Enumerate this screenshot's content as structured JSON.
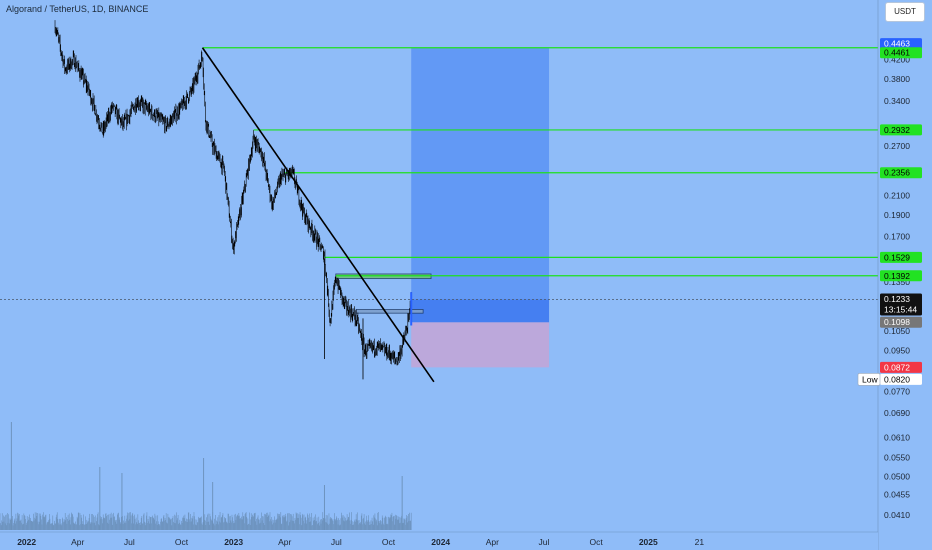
{
  "header": {
    "symbol_title": "Algorand / TetherUS, 1D, BINANCE",
    "currency": "USDT"
  },
  "colors": {
    "background": "#8fbcf8",
    "level_line": "#1ee01e",
    "target_zone": "#5a93f5",
    "stop_zone": "#c4a4d6",
    "candles": "#000000",
    "volume": "#6a8fb8",
    "current_price_tag": "#111111",
    "entry_tag": "#777777",
    "stop_tag": "#f23645",
    "target_tag": "#2962ff"
  },
  "chart_data": {
    "type": "candlestick",
    "symbol": "ALGOUSDT",
    "exchange": "BINANCE",
    "interval": "1D",
    "y_scale": "log",
    "y_range": [
      0.038,
      0.53
    ],
    "x_range": [
      "2021-11-15",
      "2026-02-10"
    ],
    "x_ticks": [
      {
        "date": "2022-01-01",
        "label": "2022",
        "bold": true
      },
      {
        "date": "2022-04-01",
        "label": "Apr",
        "bold": false
      },
      {
        "date": "2022-07-01",
        "label": "Jul",
        "bold": false
      },
      {
        "date": "2022-10-01",
        "label": "Oct",
        "bold": false
      },
      {
        "date": "2023-01-01",
        "label": "2023",
        "bold": true
      },
      {
        "date": "2023-04-01",
        "label": "Apr",
        "bold": false
      },
      {
        "date": "2023-07-01",
        "label": "Jul",
        "bold": false
      },
      {
        "date": "2023-10-01",
        "label": "Oct",
        "bold": false
      },
      {
        "date": "2024-01-01",
        "label": "2024",
        "bold": true
      },
      {
        "date": "2024-04-01",
        "label": "Apr",
        "bold": false
      },
      {
        "date": "2024-07-01",
        "label": "Jul",
        "bold": false
      },
      {
        "date": "2024-10-01",
        "label": "Oct",
        "bold": false
      },
      {
        "date": "2025-01-01",
        "label": "2025",
        "bold": true
      },
      {
        "date": "2025-04-01",
        "label": "21",
        "bold": false
      }
    ],
    "y_ticks": [
      0.42,
      0.38,
      0.34,
      0.27,
      0.21,
      0.19,
      0.17,
      0.135,
      0.105,
      0.095,
      0.077,
      0.069,
      0.061,
      0.055,
      0.05,
      0.0455,
      0.041
    ],
    "y_tick_labels": [
      "0.4200",
      "0.3800",
      "0.3400",
      "0.2700",
      "0.2100",
      "0.1900",
      "0.1700",
      "0.1350",
      "0.1050",
      "0.0950",
      "0.0770",
      "0.0690",
      "0.0610",
      "0.0550",
      "0.0500",
      "0.0455",
      "0.0410"
    ],
    "price_path": [
      {
        "date": "2022-02-20",
        "price": 0.5
      },
      {
        "date": "2022-03-10",
        "price": 0.4
      },
      {
        "date": "2022-03-25",
        "price": 0.42
      },
      {
        "date": "2022-04-20",
        "price": 0.36
      },
      {
        "date": "2022-05-15",
        "price": 0.29
      },
      {
        "date": "2022-06-01",
        "price": 0.33
      },
      {
        "date": "2022-06-20",
        "price": 0.3
      },
      {
        "date": "2022-07-15",
        "price": 0.34
      },
      {
        "date": "2022-08-10",
        "price": 0.32
      },
      {
        "date": "2022-09-05",
        "price": 0.3
      },
      {
        "date": "2022-10-01",
        "price": 0.33
      },
      {
        "date": "2022-10-20",
        "price": 0.36
      },
      {
        "date": "2022-11-07",
        "price": 0.43
      },
      {
        "date": "2022-11-12",
        "price": 0.31
      },
      {
        "date": "2022-11-25",
        "price": 0.27
      },
      {
        "date": "2022-12-15",
        "price": 0.24
      },
      {
        "date": "2022-12-31",
        "price": 0.16
      },
      {
        "date": "2023-01-15",
        "price": 0.2
      },
      {
        "date": "2023-02-05",
        "price": 0.28
      },
      {
        "date": "2023-02-20",
        "price": 0.26
      },
      {
        "date": "2023-03-10",
        "price": 0.2
      },
      {
        "date": "2023-03-25",
        "price": 0.23
      },
      {
        "date": "2023-04-15",
        "price": 0.235
      },
      {
        "date": "2023-05-05",
        "price": 0.19
      },
      {
        "date": "2023-05-25",
        "price": 0.17
      },
      {
        "date": "2023-06-10",
        "price": 0.155
      },
      {
        "date": "2023-06-20",
        "price": 0.11
      },
      {
        "date": "2023-06-30",
        "price": 0.138
      },
      {
        "date": "2023-07-15",
        "price": 0.12
      },
      {
        "date": "2023-08-05",
        "price": 0.112
      },
      {
        "date": "2023-08-20",
        "price": 0.095
      },
      {
        "date": "2023-09-10",
        "price": 0.097
      },
      {
        "date": "2023-09-30",
        "price": 0.094
      },
      {
        "date": "2023-10-15",
        "price": 0.09
      },
      {
        "date": "2023-10-25",
        "price": 0.097
      },
      {
        "date": "2023-11-05",
        "price": 0.11
      },
      {
        "date": "2023-11-10",
        "price": 0.1233
      }
    ],
    "current_price": 0.1233,
    "countdown": "13:15:44",
    "levels": [
      {
        "label": "0.4461",
        "price": 0.4461,
        "start": "2022-11-07"
      },
      {
        "label": "0.2932",
        "price": 0.2932,
        "start": "2023-02-05"
      },
      {
        "label": "0.2356",
        "price": 0.2356,
        "start": "2023-04-01"
      },
      {
        "label": "0.1529",
        "price": 0.1529,
        "start": "2023-06-10"
      },
      {
        "label": "0.1392",
        "price": 0.1392,
        "start": "2023-06-30"
      }
    ],
    "trendline": {
      "from": {
        "date": "2022-11-07",
        "price": 0.4461
      },
      "to": {
        "date": "2023-12-20",
        "price": 0.081
      }
    },
    "position": {
      "start": "2023-11-10",
      "end": "2024-07-10",
      "entry": 0.1098,
      "target": 0.4463,
      "stop": 0.0872
    },
    "resistance_boxes": [
      {
        "start": "2023-06-30",
        "end": "2023-12-15",
        "high": 0.1405,
        "low": 0.1372
      },
      {
        "start": "2023-08-05",
        "end": "2023-12-01",
        "high": 0.1172,
        "low": 0.115
      }
    ],
    "price_tags": [
      {
        "label": "0.4463",
        "price": 0.4463,
        "role": "target"
      },
      {
        "label": "0.4461",
        "price": 0.4461,
        "role": "level"
      },
      {
        "label": "0.2932",
        "price": 0.2932,
        "role": "level"
      },
      {
        "label": "0.2356",
        "price": 0.2356,
        "role": "level"
      },
      {
        "label": "0.1529",
        "price": 0.1529,
        "role": "level"
      },
      {
        "label": "0.1392",
        "price": 0.1392,
        "role": "level"
      },
      {
        "label": "0.1233",
        "price": 0.1233,
        "role": "current"
      },
      {
        "label": "0.1098",
        "price": 0.1098,
        "role": "entry"
      },
      {
        "label": "0.0872",
        "price": 0.0872,
        "role": "stop"
      },
      {
        "label": "0.0820",
        "price": 0.082,
        "role": "low"
      }
    ],
    "low_marker": {
      "label": "Low",
      "price": 0.082
    },
    "volume_spikes": [
      {
        "date": "2021-12-05",
        "level": 0.72
      },
      {
        "date": "2022-05-10",
        "level": 0.42
      },
      {
        "date": "2022-06-18",
        "level": 0.38
      },
      {
        "date": "2022-11-09",
        "level": 0.48
      },
      {
        "date": "2022-11-25",
        "level": 0.32
      },
      {
        "date": "2023-06-10",
        "level": 0.3
      },
      {
        "date": "2023-10-25",
        "level": 0.36
      }
    ]
  }
}
